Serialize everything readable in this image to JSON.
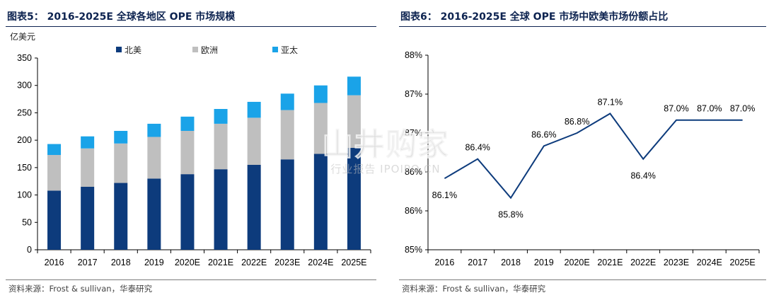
{
  "left": {
    "title": "图表5： 2016-2025E 全球各地区 OPE 市场规模",
    "source": "资料来源：Frost & sullivan，华泰研究"
  },
  "right": {
    "title": "图表6： 2016-2025E 全球 OPE 市场中欧美市场份额占比",
    "source": "资料来源：Frost & sullivan，华泰研究"
  },
  "watermark": {
    "main": "山井购家",
    "sub": "行业报告 IPOIPO.CN"
  },
  "chart_data": [
    {
      "type": "bar",
      "stacked": true,
      "title": "图表5： 2016-2025E 全球各地区 OPE 市场规模",
      "ylabel": "亿美元",
      "categories": [
        "2016",
        "2017",
        "2018",
        "2019",
        "2020E",
        "2021E",
        "2022E",
        "2023E",
        "2024E",
        "2025E"
      ],
      "series": [
        {
          "name": "北美",
          "color": "#0d3b7c",
          "values": [
            108,
            115,
            122,
            130,
            138,
            147,
            155,
            165,
            175,
            186
          ]
        },
        {
          "name": "欧洲",
          "color": "#bfbfbf",
          "values": [
            65,
            70,
            72,
            76,
            79,
            83,
            86,
            90,
            93,
            96
          ]
        },
        {
          "name": "亚太",
          "color": "#1aa3e8",
          "values": [
            20,
            22,
            23,
            24,
            26,
            27,
            29,
            30,
            32,
            34
          ]
        }
      ],
      "ylim": [
        0,
        350
      ],
      "yticks": [
        0,
        50,
        100,
        150,
        200,
        250,
        300,
        350
      ],
      "legend": "top",
      "grid": false
    },
    {
      "type": "line",
      "title": "图表6： 2016-2025E 全球 OPE 市场中欧美市场份额占比",
      "categories": [
        "2016",
        "2017",
        "2018",
        "2019",
        "2020E",
        "2021E",
        "2022E",
        "2023E",
        "2024E",
        "2025E"
      ],
      "series": [
        {
          "color": "#0d3b7c",
          "values": [
            86.1,
            86.4,
            85.8,
            86.6,
            86.8,
            87.1,
            86.4,
            87.0,
            87.0,
            87.0
          ],
          "labels": [
            "86.1%",
            "86.4%",
            "85.8%",
            "86.6%",
            "86.8%",
            "87.1%",
            "86.4%",
            "87.0%",
            "87.0%",
            "87.0%"
          ]
        }
      ],
      "ylim": [
        85,
        88
      ],
      "yticks": [
        85,
        85.6,
        86.2,
        86.8,
        87.4,
        88
      ],
      "ytick_labels": [
        "85%",
        "86%",
        "86%",
        "87%",
        "87%",
        "88%"
      ],
      "legend": "none",
      "grid": false
    }
  ]
}
